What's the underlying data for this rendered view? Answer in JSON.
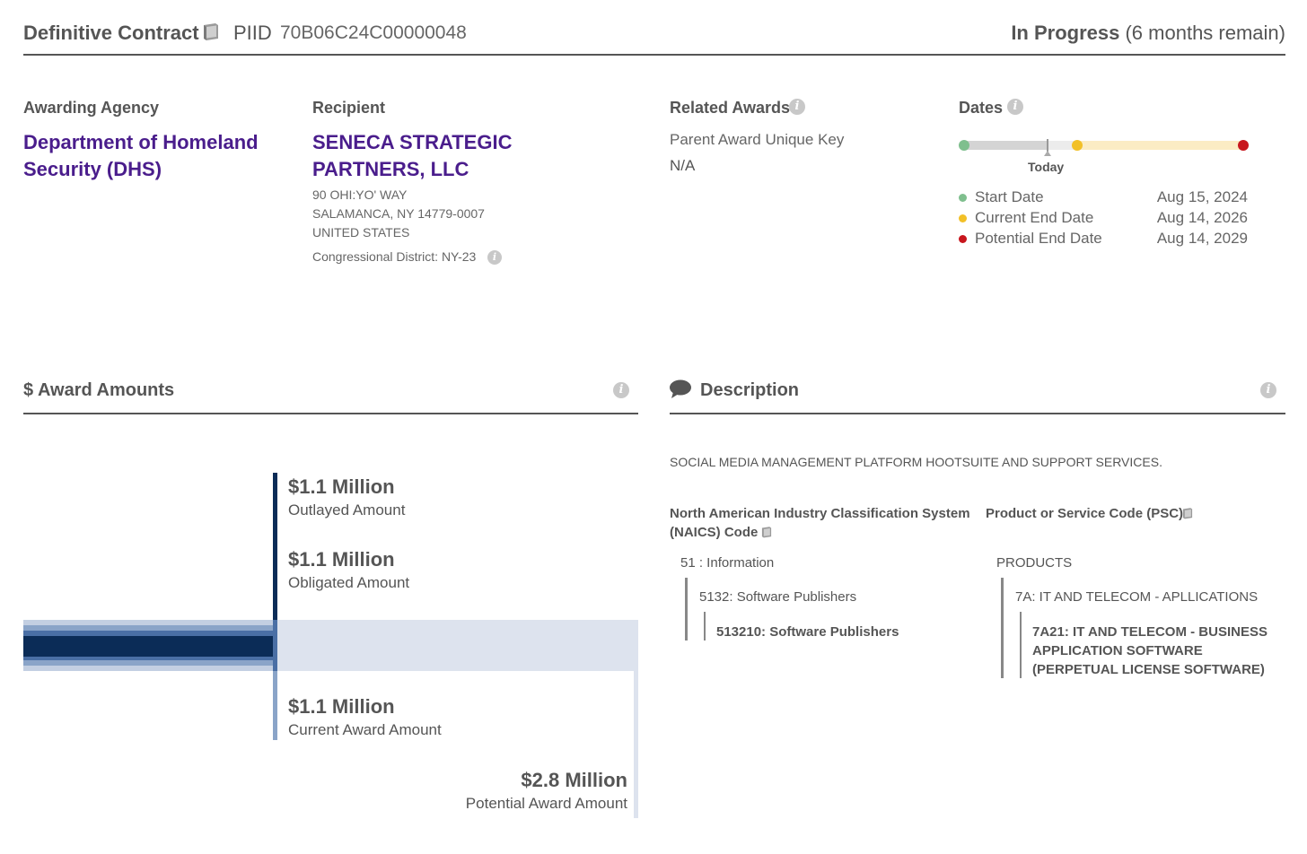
{
  "header": {
    "contract_type": "Definitive Contract",
    "piid_label": "PIID",
    "piid_value": "70B06C24C00000048",
    "status_main": "In Progress",
    "status_sub": "(6 months remain)"
  },
  "agency": {
    "label": "Awarding Agency",
    "name": "Department of Homeland Security (DHS)"
  },
  "recipient": {
    "label": "Recipient",
    "name": "SENECA STRATEGIC PARTNERS, LLC",
    "address_line1": "90 OHI:YO' WAY",
    "address_line2": "SALAMANCA, NY 14779-0007",
    "address_line3": "UNITED STATES",
    "district": "Congressional District: NY-23"
  },
  "related": {
    "label": "Related Awards",
    "parent_key_label": "Parent Award Unique Key",
    "parent_key_value": "N/A"
  },
  "dates": {
    "label": "Dates",
    "today_label": "Today",
    "progress_today_fraction": 0.3,
    "entries": [
      {
        "label": "Start Date",
        "date": "Aug 15, 2024",
        "color": "#7fbf8e"
      },
      {
        "label": "Current End Date",
        "date": "Aug 14, 2026",
        "color": "#f2c027"
      },
      {
        "label": "Potential End Date",
        "date": "Aug 14, 2029",
        "color": "#c8161d"
      }
    ]
  },
  "award_amounts": {
    "title": "$ Award Amounts",
    "outlayed_value": "$1.1 Million",
    "outlayed_label": "Outlayed Amount",
    "obligated_value": "$1.1 Million",
    "obligated_label": "Obligated Amount",
    "current_value": "$1.1 Million",
    "current_label": "Current Award Amount",
    "potential_value": "$2.8 Million",
    "potential_label": "Potential Award Amount",
    "colors": {
      "outlayed": "#0b2c57",
      "obligated": "#4a6fa5",
      "current": "#8aa4c8",
      "potential": "#dde3ee"
    }
  },
  "description": {
    "title": "Description",
    "text": "SOCIAL MEDIA MANAGEMENT PLATFORM HOOTSUITE AND SUPPORT SERVICES.",
    "naics_heading_line1": "North American Industry Classification System",
    "naics_heading_line2": "(NAICS)  Code",
    "naics_level1": "51 : Information",
    "naics_level2": "5132: Software Publishers",
    "naics_level3": "513210: Software Publishers",
    "psc_heading": "Product or Service Code  (PSC)",
    "psc_level1": "PRODUCTS",
    "psc_level2": "7A: IT AND TELECOM - APLLICATIONS",
    "psc_level3_line1": "7A21: IT AND TELECOM - BUSINESS",
    "psc_level3_line2": "APPLICATION SOFTWARE",
    "psc_level3_line3": "(PERPETUAL LICENSE SOFTWARE)"
  },
  "info_glyph": "i"
}
